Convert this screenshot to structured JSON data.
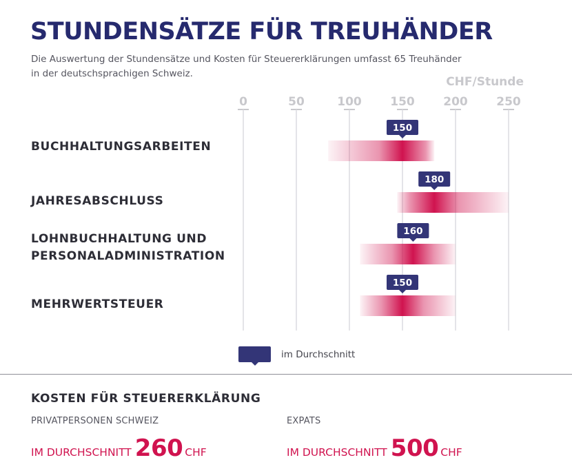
{
  "header": {
    "title": "STUNDENSÄTZE FÜR TREUHÄNDER",
    "subtitle_line1": "Die Auswertung der Stundensätze und Kosten für Steuererklärungen umfasst 65 Treuhänder",
    "subtitle_line2": "in der deutschsprachigen Schweiz."
  },
  "chart_data": {
    "type": "bar",
    "orientation": "horizontal-range",
    "unit_label": "CHF/Stunde",
    "x_ticks": [
      0,
      50,
      100,
      150,
      200,
      250
    ],
    "xlim": [
      0,
      250
    ],
    "categories": [
      "BUCHHALTUNGSARBEITEN",
      "JAHRESABSCHLUSS",
      "LOHNBUCHHALTUNG UND\nPERSONALADMINISTRATION",
      "MEHRWERTSTEUER"
    ],
    "ranges": [
      [
        80,
        180
      ],
      [
        145,
        250
      ],
      [
        110,
        200
      ],
      [
        110,
        200
      ]
    ],
    "averages": [
      150,
      180,
      160,
      150
    ],
    "legend": "im Durchschnitt"
  },
  "costs": {
    "title": "KOSTEN FÜR STEUERERKLÄRUNG",
    "groups": [
      {
        "label": "PRIVATPERSONEN SCHWEIZ",
        "prefix": "IM DURCHSCHNITT",
        "value": "260",
        "unit": "CHF"
      },
      {
        "label": "EXPATS",
        "prefix": "IM DURCHSCHNITT",
        "value": "500",
        "unit": "CHF"
      }
    ]
  },
  "colors": {
    "title": "#262a6e",
    "badge": "#333577",
    "bar": "#d0134f",
    "axis": "#c8c8cc"
  }
}
